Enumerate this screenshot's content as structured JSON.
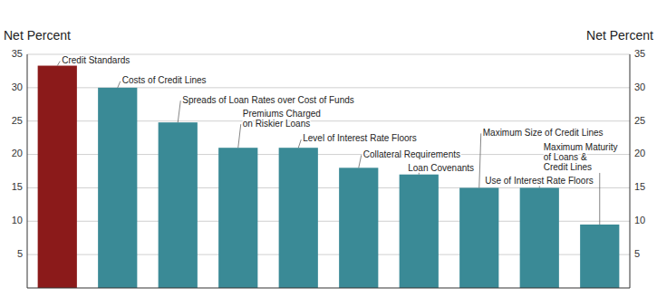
{
  "chart_data": {
    "type": "bar",
    "categories": [
      null,
      null,
      null,
      null,
      null,
      null,
      null,
      null,
      null,
      null
    ],
    "values": [
      33.3,
      30.0,
      24.8,
      21.0,
      21.0,
      18.0,
      17.0,
      15.0,
      15.0,
      9.5
    ],
    "colors": [
      "#8B1A1A",
      "#3A8A96",
      "#3A8A96",
      "#3A8A96",
      "#3A8A96",
      "#3A8A96",
      "#3A8A96",
      "#3A8A96",
      "#3A8A96",
      "#3A8A96"
    ],
    "ylabel": "Net Percent",
    "y2label": "Net Percent",
    "ylim": [
      0,
      35
    ],
    "yticks": [
      5,
      10,
      15,
      20,
      25,
      30,
      35
    ],
    "y2lim": [
      0,
      35
    ],
    "y2ticks": [
      5,
      10,
      15,
      20,
      25,
      30,
      35
    ],
    "grid": true,
    "annotations": [
      "Credit Standards",
      "Costs of Credit Lines",
      "Spreads of Loan Rates over Cost of Funds",
      "Premiums Charged\non Riskier Loans",
      "Level of Interest Rate Floors",
      "Collateral Requirements",
      "Loan Covenants",
      "Maximum Size of Credit Lines",
      "Use of Interest Rate Floors",
      "Maximum Maturity\nof Loans &\nCredit Lines"
    ]
  }
}
